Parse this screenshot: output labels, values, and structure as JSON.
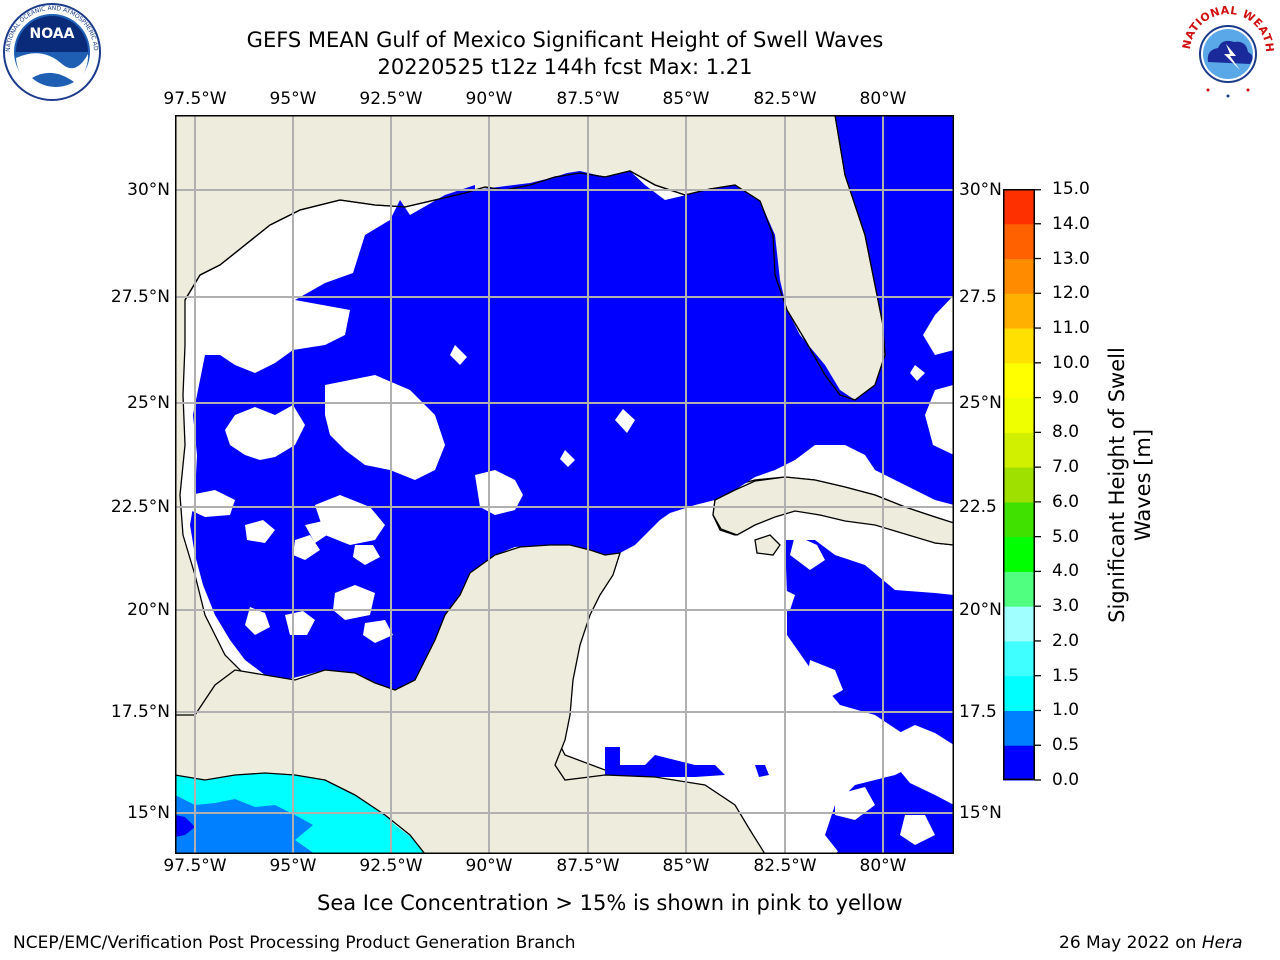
{
  "header": {
    "title_line1": "GEFS MEAN Gulf of Mexico Significant Height of Swell Waves",
    "title_line2": "20220525 t12z 144h fcst   Max: 1.21"
  },
  "logos": {
    "left": {
      "name": "noaa-logo",
      "text": "NOAA",
      "ring_text": "NATIONAL OCEANIC AND ATMOSPHERIC ADMINISTRATION · U.S. DEPARTMENT OF COMMERCE"
    },
    "right": {
      "name": "nws-logo",
      "ring_text": "NATIONAL WEATHER SERVICE"
    }
  },
  "map": {
    "lon_labels_top": [
      "97.5°W",
      "95°W",
      "92.5°W",
      "90°W",
      "87.5°W",
      "85°W",
      "82.5°W",
      "80°W"
    ],
    "lon_labels_bottom": [
      "97.5°W",
      "95°W",
      "92.5°W",
      "90°W",
      "87.5°W",
      "85°W",
      "82.5°W",
      "80°W"
    ],
    "lat_labels_left": [
      "30°N",
      "27.5°N",
      "25°N",
      "22.5°N",
      "20°N",
      "17.5°N",
      "15°N"
    ],
    "lat_labels_right": [
      "30°N",
      "27.5",
      "25°N",
      "22.5",
      "20°N",
      "17.5",
      "15°N"
    ],
    "colors": {
      "land": "#eeecdc",
      "ocean_swell": "#0000ff",
      "grid": "#b0b0b0",
      "low_value": "#ffffff",
      "cyan": "#00ffff",
      "azure": "#0080ff"
    }
  },
  "colorbar": {
    "label": "Significant Height of Swell Waves [m]",
    "ticks": [
      "15.0",
      "14.0",
      "13.0",
      "12.0",
      "11.0",
      "10.0",
      "9.0",
      "8.0",
      "7.0",
      "6.0",
      "5.0",
      "4.0",
      "3.0",
      "2.0",
      "1.5",
      "1.0",
      "0.5",
      "0.0"
    ],
    "colors": [
      "#0000ff",
      "#0080ff",
      "#00ffff",
      "#40ffff",
      "#a0ffff",
      "#50ff80",
      "#00ff00",
      "#40e000",
      "#a0e000",
      "#d0f000",
      "#f0ff00",
      "#ffff00",
      "#ffe000",
      "#ffb000",
      "#ff8c00",
      "#ff6000",
      "#ff3000",
      "#ff0000"
    ]
  },
  "footer": {
    "note": "Sea Ice Concentration > 15% is shown in pink to yellow",
    "credit": "NCEP/EMC/Verification Post Processing Product Generation Branch",
    "date": "26 May 2022 on",
    "host": "Hera"
  }
}
